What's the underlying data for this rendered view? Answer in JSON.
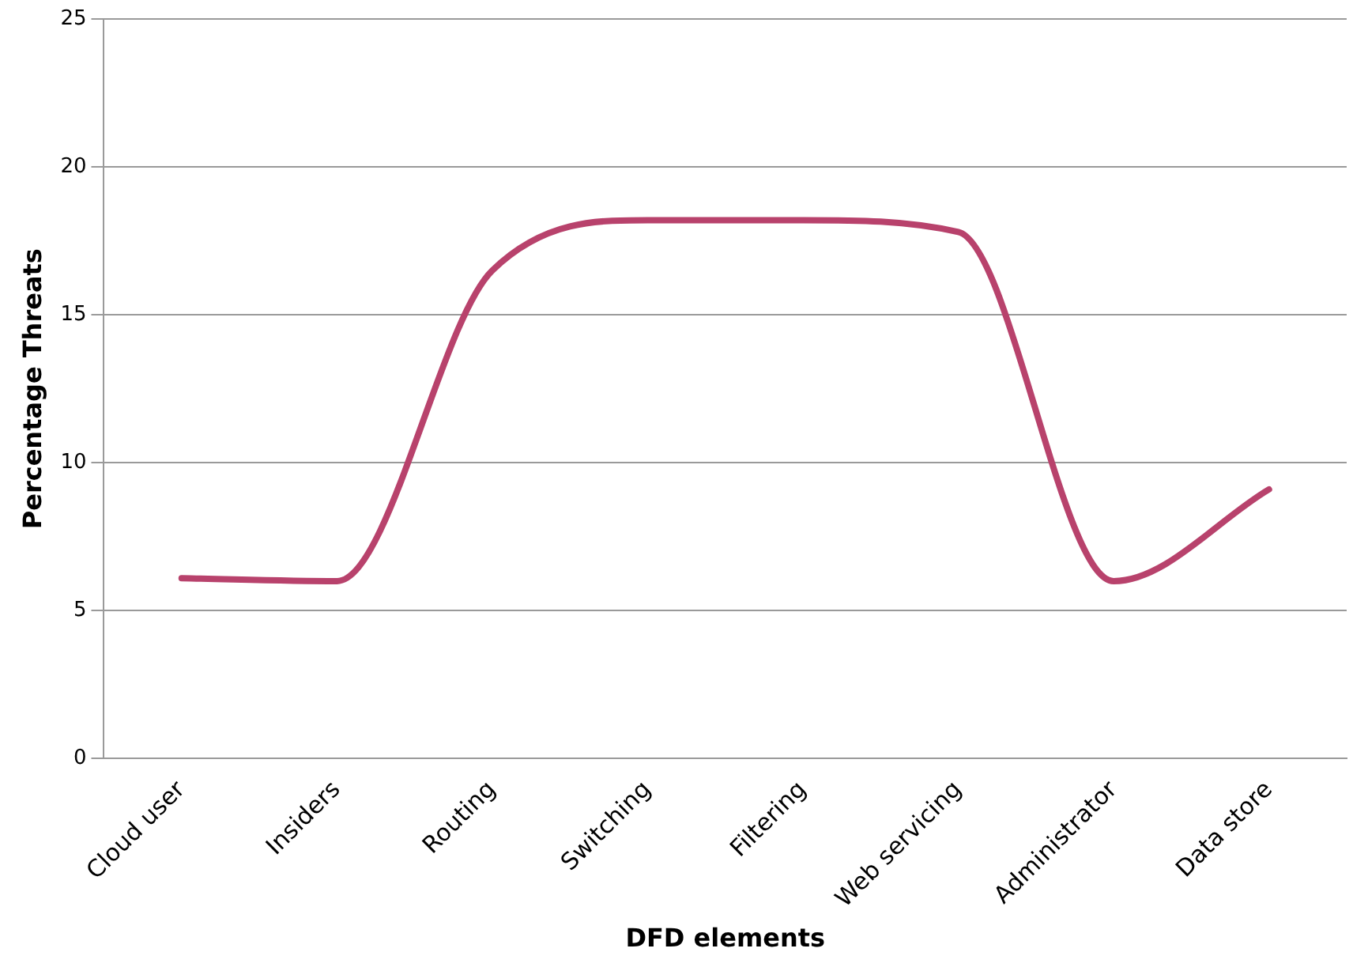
{
  "chart_data": {
    "type": "line",
    "xlabel": "DFD elements",
    "ylabel": "Percentage Threats",
    "categories": [
      "Cloud user",
      "Insiders",
      "Routing",
      "Switching",
      "Filtering",
      "Web servicing",
      "Administrator",
      "Data store"
    ],
    "series": [
      {
        "color": "#b8426c",
        "values": [
          6.1,
          6.0,
          16.5,
          18.2,
          18.2,
          17.8,
          6.0,
          9.1
        ]
      }
    ],
    "ylim": [
      0,
      25
    ],
    "yticks": [
      0,
      5,
      10,
      15,
      20,
      25
    ],
    "grid": "y",
    "legend": false,
    "marker": "none"
  }
}
